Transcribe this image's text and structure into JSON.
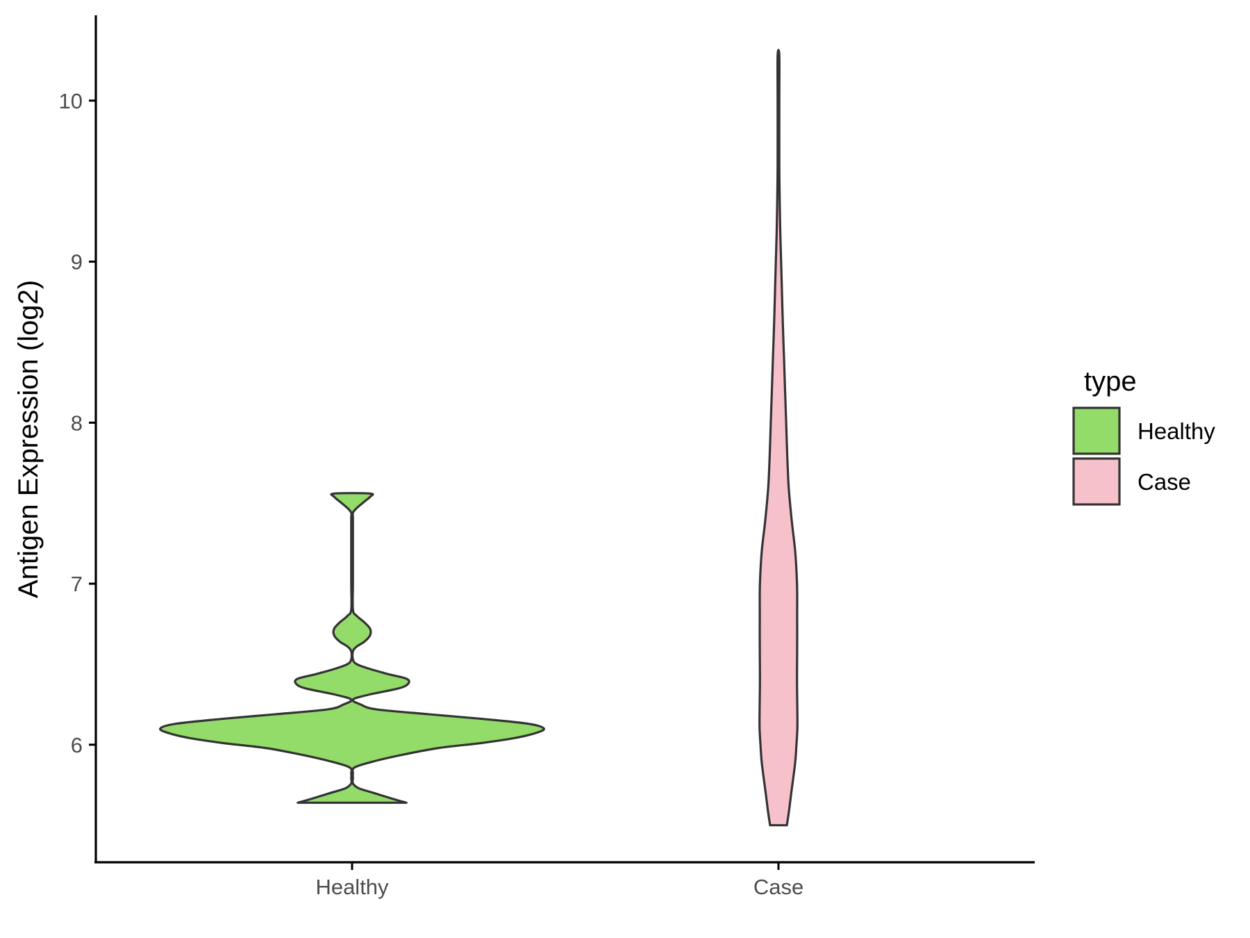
{
  "chart_data": {
    "type": "violin",
    "ylabel": "Antigen Expression (log2)",
    "xlabel": "",
    "categories": [
      "Healthy",
      "Case"
    ],
    "yticks": [
      6,
      7,
      8,
      9,
      10
    ],
    "ylim": [
      5.27,
      10.53
    ],
    "grid": false,
    "legend": {
      "title": "type",
      "position": "right",
      "entries": [
        {
          "label": "Healthy",
          "color": "#93DC6A"
        },
        {
          "label": "Case",
          "color": "#F7C1CB"
        }
      ]
    },
    "series": [
      {
        "name": "Healthy",
        "color": "#93DC6A",
        "min": 5.64,
        "max": 7.56,
        "density_profile": [
          [
            5.64,
            0.28
          ],
          [
            5.66,
            0.22
          ],
          [
            5.7,
            0.11
          ],
          [
            5.73,
            0.03
          ],
          [
            5.76,
            0.0
          ],
          [
            5.79,
            0.0
          ],
          [
            5.82,
            0.0
          ],
          [
            5.86,
            0.01
          ],
          [
            5.9,
            0.12
          ],
          [
            5.94,
            0.27
          ],
          [
            5.98,
            0.45
          ],
          [
            6.01,
            0.67
          ],
          [
            6.04,
            0.84
          ],
          [
            6.07,
            0.95
          ],
          [
            6.1,
            1.0
          ],
          [
            6.13,
            0.92
          ],
          [
            6.16,
            0.68
          ],
          [
            6.19,
            0.39
          ],
          [
            6.22,
            0.12
          ],
          [
            6.25,
            0.04
          ],
          [
            6.28,
            0.0
          ],
          [
            6.31,
            0.08
          ],
          [
            6.35,
            0.24
          ],
          [
            6.38,
            0.29
          ],
          [
            6.41,
            0.28
          ],
          [
            6.44,
            0.18
          ],
          [
            6.47,
            0.09
          ],
          [
            6.5,
            0.02
          ],
          [
            6.53,
            0.0
          ],
          [
            6.58,
            0.0
          ],
          [
            6.61,
            0.02
          ],
          [
            6.64,
            0.06
          ],
          [
            6.68,
            0.09
          ],
          [
            6.72,
            0.09
          ],
          [
            6.76,
            0.06
          ],
          [
            6.8,
            0.02
          ],
          [
            6.84,
            0.0
          ],
          [
            7.0,
            0.0
          ],
          [
            7.2,
            0.0
          ],
          [
            7.4,
            0.0
          ],
          [
            7.44,
            0.0
          ],
          [
            7.47,
            0.02
          ],
          [
            7.51,
            0.06
          ],
          [
            7.54,
            0.09
          ],
          [
            7.56,
            0.09
          ]
        ]
      },
      {
        "name": "Case",
        "color": "#F7C1CB",
        "min": 5.5,
        "max": 10.28,
        "density_profile": [
          [
            5.5,
            0.42
          ],
          [
            5.6,
            0.55
          ],
          [
            5.7,
            0.66
          ],
          [
            5.8,
            0.78
          ],
          [
            5.9,
            0.89
          ],
          [
            6.0,
            0.95
          ],
          [
            6.1,
            1.0
          ],
          [
            6.2,
            1.0
          ],
          [
            6.4,
            0.98
          ],
          [
            6.6,
            0.99
          ],
          [
            6.8,
            0.99
          ],
          [
            7.0,
            0.98
          ],
          [
            7.2,
            0.88
          ],
          [
            7.4,
            0.68
          ],
          [
            7.6,
            0.52
          ],
          [
            7.8,
            0.44
          ],
          [
            8.0,
            0.38
          ],
          [
            8.2,
            0.32
          ],
          [
            8.4,
            0.26
          ],
          [
            8.6,
            0.2
          ],
          [
            8.8,
            0.15
          ],
          [
            9.0,
            0.1
          ],
          [
            9.2,
            0.05
          ],
          [
            9.4,
            0.02
          ],
          [
            9.6,
            0.0
          ],
          [
            10.0,
            0.0
          ],
          [
            10.28,
            0.0
          ]
        ]
      }
    ]
  }
}
